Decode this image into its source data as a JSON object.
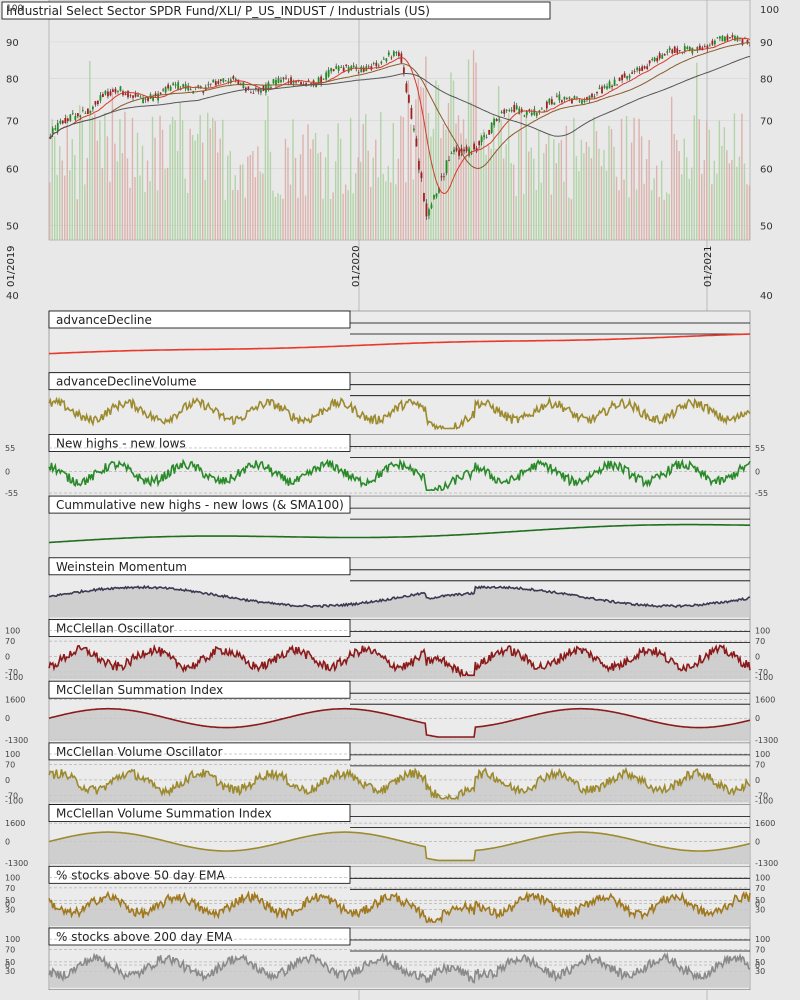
{
  "main": {
    "title": "Industrial Select Sector SPDR Fund/XLI/ P_US_INDUST / Industrials (US)",
    "ticks_left": [
      "90",
      "80",
      "70",
      "60",
      "50",
      "40"
    ],
    "top_tick": "100",
    "ticks_right": [
      "100",
      "90",
      "80",
      "70",
      "60",
      "50",
      "40"
    ],
    "date_labels": [
      "01/2019",
      "01/2020",
      "01/2021"
    ]
  },
  "chart_data": {
    "type": "line",
    "title": "Industrial Select Sector SPDR Fund/XLI/ P_US_INDUST / Industrials (US)",
    "x_range": [
      "2019-01",
      "2021-03"
    ],
    "price_ylim": [
      40,
      100
    ],
    "price_scale": "log",
    "series": [
      {
        "name": "price",
        "x": [
          "2019-01",
          "2019-03",
          "2019-05",
          "2019-07",
          "2019-09",
          "2019-11",
          "2020-01",
          "2020-02",
          "2020-03",
          "2020-04",
          "2020-05",
          "2020-06",
          "2020-08",
          "2020-10",
          "2020-11",
          "2021-01",
          "2021-02",
          "2021-03"
        ],
        "values": [
          66,
          76,
          76,
          79,
          78,
          80,
          84,
          86,
          52,
          62,
          66,
          72,
          74,
          78,
          84,
          89,
          90,
          91
        ]
      }
    ],
    "panels": [
      {
        "title": "advanceDecline",
        "color": "#e8392a",
        "labels": []
      },
      {
        "title": "advanceDeclineVolume",
        "color": "#9c8a2e",
        "labels": []
      },
      {
        "title": "New highs - new lows",
        "color": "#2a8a2a",
        "labels": [
          "55",
          "0",
          "-55"
        ]
      },
      {
        "title": "Cummulative new highs - new lows (& SMA100)",
        "color": "#1f6f1f",
        "labels": []
      },
      {
        "title": "Weinstein Momentum",
        "color": "#3a3a52",
        "labels": []
      },
      {
        "title": "McClellan Oscillator",
        "color": "#8b1a1a",
        "labels": [
          "100",
          "70",
          "0",
          "-70",
          "-100"
        ]
      },
      {
        "title": "McClellan Summation Index",
        "color": "#8b1a1a",
        "labels": [
          "1600",
          "0",
          "-1300"
        ]
      },
      {
        "title": "McClellan Volume Oscillator",
        "color": "#9c8a2e",
        "labels": [
          "100",
          "70",
          "0",
          "-70",
          "-100"
        ]
      },
      {
        "title": "McClellan Volume Summation Index",
        "color": "#9c8a2e",
        "labels": [
          "1600",
          "0",
          "-1300"
        ]
      },
      {
        "title": "% stocks above 50 day EMA",
        "color": "#a0781e",
        "labels": [
          "100",
          "70",
          "50",
          "30",
          "0"
        ]
      },
      {
        "title": "% stocks above 200 day EMA",
        "color": "#8a8a8a",
        "labels": [
          "100",
          "70",
          "50",
          "30",
          "0"
        ]
      }
    ]
  }
}
